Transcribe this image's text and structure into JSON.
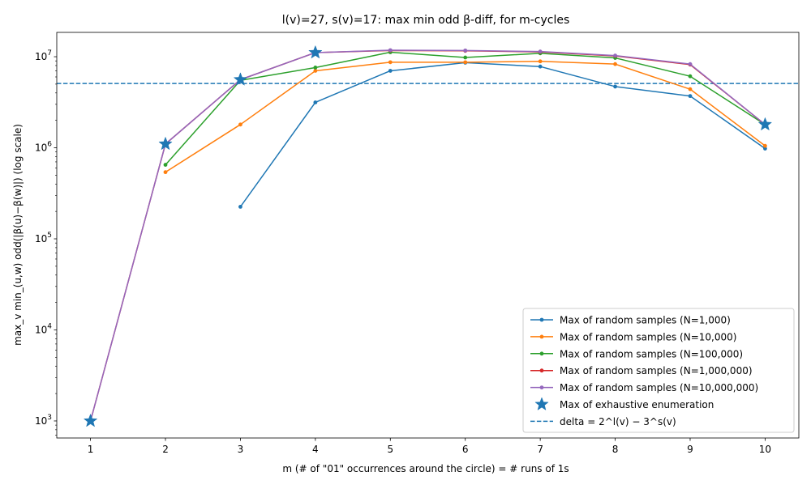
{
  "chart_data": {
    "type": "line",
    "title": "l(v)=27, s(v)=17: max min odd β-diff, for m-cycles",
    "xlabel": "m  (# of \"01\" occurrences around the circle)  = # runs of 1s",
    "ylabel": "max_v min_(u,w) odd(|β(u)−β(w)|)  (log scale)",
    "yscale": "log",
    "xlim": [
      0.55,
      10.45
    ],
    "ylim": [
      650,
      18500000
    ],
    "x_ticks": [
      1,
      2,
      3,
      4,
      5,
      6,
      7,
      8,
      9,
      10
    ],
    "y_ticks": [
      {
        "value": 1000,
        "base": "10",
        "exp": "3"
      },
      {
        "value": 10000,
        "base": "10",
        "exp": "4"
      },
      {
        "value": 100000,
        "base": "10",
        "exp": "5"
      },
      {
        "value": 1000000,
        "base": "10",
        "exp": "6"
      },
      {
        "value": 10000000,
        "base": "10",
        "exp": "7"
      }
    ],
    "series": [
      {
        "name": "Max of random samples (N=1,000)",
        "color": "#1f77b4",
        "x": [
          3,
          4,
          5,
          6,
          7,
          8,
          9,
          10
        ],
        "values": [
          225000,
          3150000,
          7000000,
          8600000,
          7800000,
          4700000,
          3700000,
          980000
        ]
      },
      {
        "name": "Max of random samples (N=10,000)",
        "color": "#ff7f0e",
        "x": [
          2,
          3,
          4,
          5,
          6,
          7,
          8,
          9,
          10
        ],
        "values": [
          540000,
          1800000,
          7000000,
          8700000,
          8700000,
          8900000,
          8300000,
          4400000,
          1050000
        ]
      },
      {
        "name": "Max of random samples (N=100,000)",
        "color": "#2ca02c",
        "x": [
          2,
          3,
          4,
          5,
          6,
          7,
          8,
          9,
          10
        ],
        "values": [
          650000,
          5500000,
          7600000,
          11200000,
          9800000,
          10900000,
          9700000,
          6100000,
          1800000
        ]
      },
      {
        "name": "Max of random samples (N=1,000,000)",
        "color": "#d62728",
        "x": [
          1,
          2,
          3,
          4,
          5,
          6,
          7,
          8,
          9,
          10
        ],
        "values": [
          1000,
          1100000,
          5600000,
          11100000,
          11700000,
          11600000,
          11300000,
          10200000,
          8200000,
          1800000
        ]
      },
      {
        "name": "Max of random samples (N=10,000,000)",
        "color": "#9467bd",
        "x": [
          1,
          2,
          3,
          4,
          5,
          6,
          7,
          8,
          9,
          10
        ],
        "values": [
          1000,
          1100000,
          5600000,
          11100000,
          11800000,
          11700000,
          11400000,
          10300000,
          8300000,
          1800000
        ]
      }
    ],
    "exhaustive": {
      "name": "Max of exhaustive enumeration",
      "color": "#1f77b4",
      "x": [
        1,
        2,
        3,
        4,
        10
      ],
      "values": [
        1000,
        1100000,
        5600000,
        11100000,
        1800000
      ]
    },
    "hline": {
      "name": "delta = 2^l(v) − 3^s(v)",
      "color": "#1f77b4",
      "value": 5077565
    },
    "legend_position": "lower-right"
  }
}
